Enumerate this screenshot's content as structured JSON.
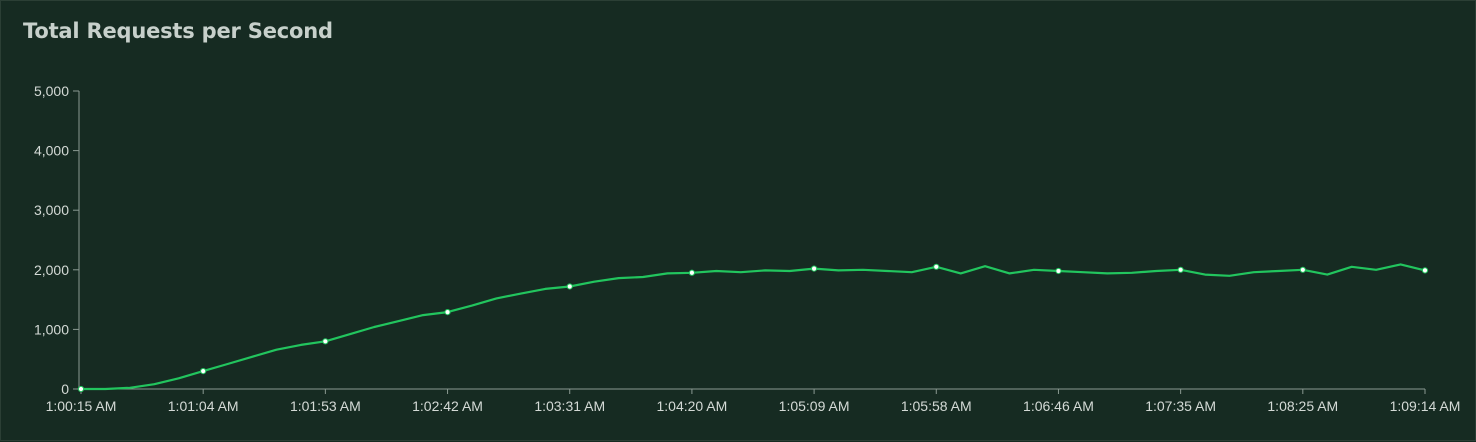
{
  "chart_data": {
    "type": "line",
    "title": "Total Requests per Second",
    "xlabel": "",
    "ylabel": "",
    "ylim": [
      0,
      5000
    ],
    "yticks": [
      0,
      1000,
      2000,
      3000,
      4000,
      5000
    ],
    "ytick_labels": [
      "0",
      "1,000",
      "2,000",
      "3,000",
      "4,000",
      "5,000"
    ],
    "xtick_labels": [
      "1:00:15 AM",
      "1:01:04 AM",
      "1:01:53 AM",
      "1:02:42 AM",
      "1:03:31 AM",
      "1:04:20 AM",
      "1:05:09 AM",
      "1:05:58 AM",
      "1:06:46 AM",
      "1:07:35 AM",
      "1:08:25 AM",
      "1:09:14 AM"
    ],
    "grid": false,
    "colors": {
      "line": "#22c55e",
      "marker": "#ffffff",
      "axis": "#8a9a92"
    },
    "series": [
      {
        "x": [
          "1:00:15 AM",
          "1:00:24 AM",
          "1:00:34 AM",
          "1:00:44 AM",
          "1:00:54 AM",
          "1:01:04 AM",
          "1:01:14 AM",
          "1:01:24 AM",
          "1:01:34 AM",
          "1:01:44 AM",
          "1:01:53 AM",
          "1:02:03 AM",
          "1:02:13 AM",
          "1:02:23 AM",
          "1:02:33 AM",
          "1:02:42 AM",
          "1:02:52 AM",
          "1:03:02 AM",
          "1:03:12 AM",
          "1:03:22 AM",
          "1:03:31 AM",
          "1:03:41 AM",
          "1:03:51 AM",
          "1:04:01 AM",
          "1:04:11 AM",
          "1:04:20 AM",
          "1:04:30 AM",
          "1:04:40 AM",
          "1:04:50 AM",
          "1:05:00 AM",
          "1:05:09 AM",
          "1:05:19 AM",
          "1:05:29 AM",
          "1:05:39 AM",
          "1:05:49 AM",
          "1:05:58 AM",
          "1:06:08 AM",
          "1:06:18 AM",
          "1:06:27 AM",
          "1:06:37 AM",
          "1:06:46 AM",
          "1:06:56 AM",
          "1:07:06 AM",
          "1:07:16 AM",
          "1:07:26 AM",
          "1:07:35 AM",
          "1:07:45 AM",
          "1:07:55 AM",
          "1:08:05 AM",
          "1:08:15 AM",
          "1:08:25 AM",
          "1:08:35 AM",
          "1:08:45 AM",
          "1:08:55 AM",
          "1:09:05 AM",
          "1:09:14 AM",
          "1:09:20 AM"
        ],
        "values": [
          0,
          0,
          20,
          80,
          180,
          300,
          420,
          540,
          660,
          740,
          800,
          920,
          1040,
          1140,
          1240,
          1290,
          1400,
          1520,
          1600,
          1680,
          1720,
          1800,
          1860,
          1880,
          1940,
          1950,
          1980,
          1960,
          1990,
          1980,
          2020,
          1990,
          2000,
          1980,
          1960,
          2050,
          1940,
          2060,
          1940,
          2000,
          1980,
          1960,
          1940,
          1950,
          1980,
          2000,
          1920,
          1900,
          1960,
          1980,
          2000,
          1920,
          2050,
          2000,
          2090,
          1990,
          2010
        ],
        "markers": [
          0,
          5,
          10,
          15,
          20,
          25,
          30,
          35,
          40,
          45,
          50,
          55
        ]
      }
    ]
  }
}
